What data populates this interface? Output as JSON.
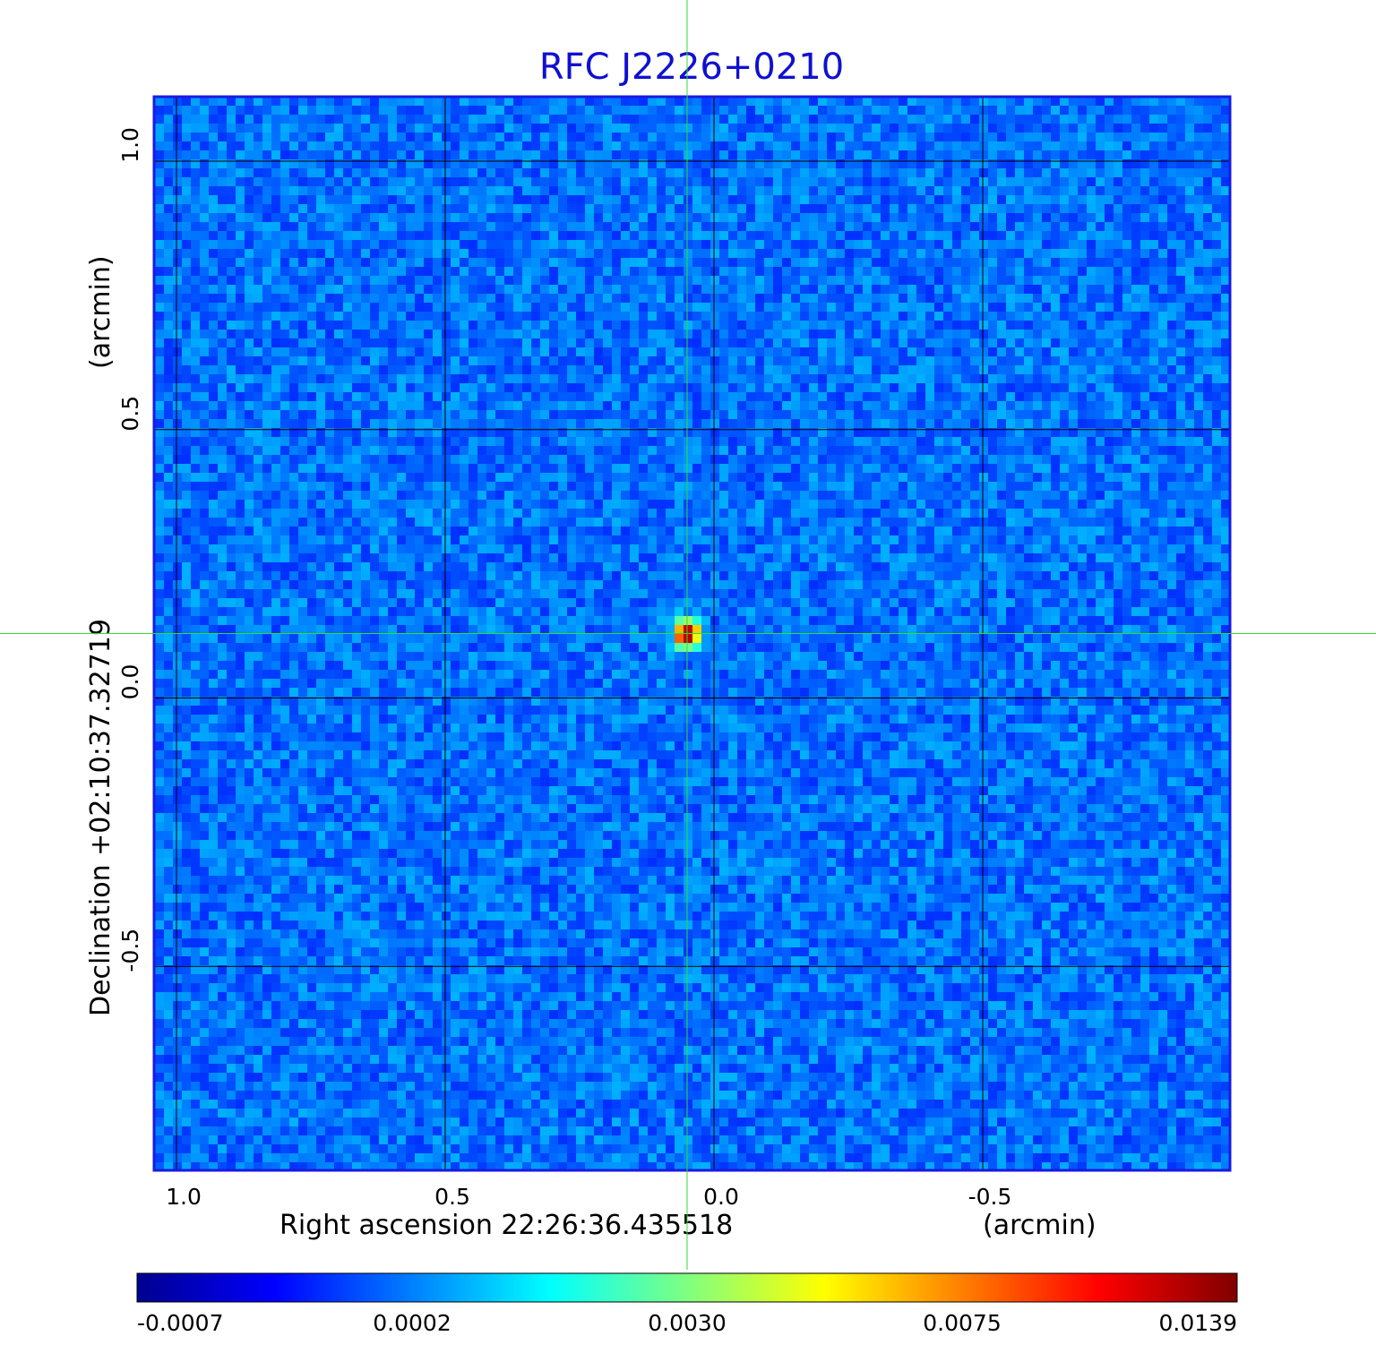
{
  "chart_data": {
    "type": "heatmap",
    "title": "RFC J2226+0210",
    "xlabel": "Right ascension  22:26:36.435518",
    "xunit": "(arcmin)",
    "ylabel": "Declination  +02:10:37.32719",
    "yunit": "(arcmin)",
    "x_range": [
      1.04,
      -0.96
    ],
    "y_range": [
      -0.88,
      1.12
    ],
    "x_ticks": [
      1.0,
      0.5,
      0.0,
      -0.5
    ],
    "x_tick_labels": [
      "1.0",
      "0.5",
      "0.0",
      "-0.5"
    ],
    "y_ticks": [
      -0.5,
      0.0,
      0.5,
      1.0
    ],
    "y_tick_labels": [
      "-0.5",
      "0.0",
      "0.5",
      "1.0"
    ],
    "grid": true,
    "crosshair": {
      "x": 0.05,
      "y": 0.12,
      "color": "#33dd33"
    },
    "source_peak": {
      "x": 0.05,
      "y": 0.12,
      "value": 0.0139
    },
    "colorbar": {
      "ticks": [
        "-0.0007",
        "0.0002",
        "0.0030",
        "0.0075",
        "0.0139"
      ],
      "colormap": "jet",
      "position": "bottom"
    },
    "colors": {
      "title": "#1010d0",
      "frame": "#1a1ae0",
      "grid": "#000000",
      "crosshair": "#33dd33"
    }
  }
}
